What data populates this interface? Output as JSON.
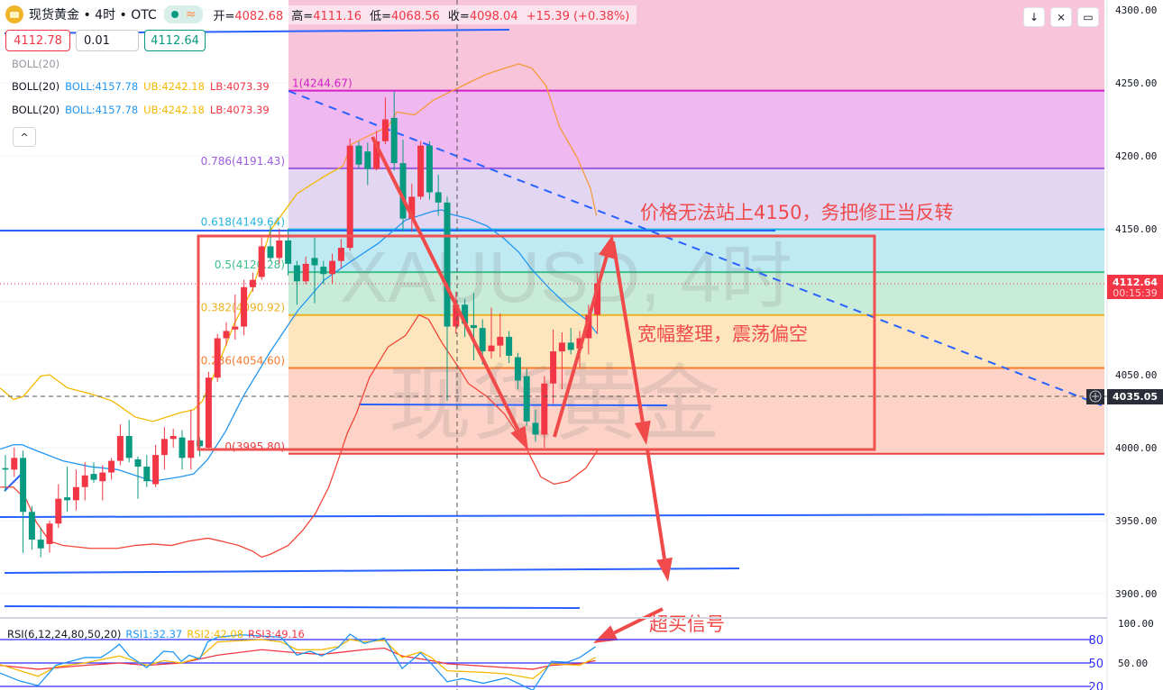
{
  "header": {
    "symbol_title": "现货黄金 • 4时 • OTC",
    "status_symbol": "≈",
    "open_label": "开=",
    "open": "4082.68",
    "high_label": "高=",
    "high": "4111.16",
    "low_label": "低=",
    "low": "4068.56",
    "close_label": "收=",
    "close": "4098.04",
    "change": "+15.39 (+0.38%)"
  },
  "trade": {
    "sell_price": "4112.78",
    "quantity": "0.01",
    "buy_price": "4112.64"
  },
  "indicators": {
    "boll_hidden": "BOLL(20)",
    "boll_rows": [
      {
        "name": "BOLL(20)",
        "mid": "BOLL:4157.78",
        "ub": "UB:4242.18",
        "lb": "LB:4073.39"
      },
      {
        "name": "BOLL(20)",
        "mid": "BOLL:4157.78",
        "ub": "UB:4242.18",
        "lb": "LB:4073.39"
      }
    ],
    "collapse_symbol": "^"
  },
  "toolbar": {
    "down_symbol": "↓",
    "collapse_symbol": "⨯",
    "fullscreen_symbol": "▭"
  },
  "price_axis": {
    "ticks": [
      "4300.00",
      "4250.00",
      "4200.00",
      "4150.00",
      "4050.00",
      "4000.00",
      "3950.00",
      "3900.00"
    ],
    "tick_values": [
      4300,
      4250,
      4200,
      4150,
      4050,
      4000,
      3950,
      3900
    ],
    "current_price": "4112.64",
    "countdown": "00:15:39",
    "crosshair_price": "4035.05"
  },
  "watermark": {
    "line1": "XAUUSD, 4时",
    "line2": "现货黄金"
  },
  "annotations": {
    "note1": "价格无法站上4150，务把修正当反转",
    "note2": "宽幅整理，震荡偏空",
    "note3": "超买信号"
  },
  "colors": {
    "up": "#f23645",
    "down": "#089981",
    "annotation": "#f04a4a",
    "drawing": "#2962ff"
  },
  "fib": [
    {
      "ratio": "1",
      "label": "1(4244.67)",
      "price": 4244.67,
      "line": "#d21fc8",
      "fill": "#f0b8f0"
    },
    {
      "ratio": "0.786",
      "label": "0.786(4191.43)",
      "price": 4191.43,
      "line": "#9c5ce0",
      "fill": "#e2d6f3"
    },
    {
      "ratio": "0.618",
      "label": "0.618(4149.64)",
      "price": 4149.64,
      "line": "#22b5dd",
      "fill": "#bfe9f3"
    },
    {
      "ratio": "0.5",
      "label": "0.5(4120.28)",
      "price": 4120.28,
      "line": "#3dbf8a",
      "fill": "#c9ecd9"
    },
    {
      "ratio": "0.382",
      "label": "0.382(4090.92)",
      "price": 4090.92,
      "line": "#e9b21f",
      "fill": "#fde6bd"
    },
    {
      "ratio": "0.236",
      "label": "0.236(4054.60)",
      "price": 4054.6,
      "line": "#f57c2e",
      "fill": "#fdd3c7"
    },
    {
      "ratio": "0",
      "label": "0(3995.80)",
      "price": 3995.8,
      "line": "#e84040",
      "fill": ""
    }
  ],
  "fib_top_fill": "#f7c4d9",
  "chart_data": {
    "type": "candlestick",
    "symbol": "XAUUSD",
    "timeframe": "4时",
    "ylim": [
      3880,
      4300
    ],
    "candles_ohlc": [
      [
        3986,
        3995,
        3970,
        3985
      ],
      [
        3985,
        4000,
        3980,
        3993
      ],
      [
        3993,
        3998,
        3928,
        3956
      ],
      [
        3956,
        3960,
        3930,
        3937
      ],
      [
        3937,
        3945,
        3925,
        3931
      ],
      [
        3934,
        3950,
        3928,
        3948
      ],
      [
        3948,
        3975,
        3945,
        3965
      ],
      [
        3966,
        3987,
        3956,
        3964
      ],
      [
        3964,
        3985,
        3957,
        3973
      ],
      [
        3973,
        3990,
        3964,
        3981
      ],
      [
        3982,
        3990,
        3976,
        3978
      ],
      [
        3977,
        3988,
        3964,
        3983
      ],
      [
        3983,
        3993,
        3978,
        3991
      ],
      [
        3991,
        4016,
        3988,
        4008
      ],
      [
        4008,
        4019,
        3990,
        3993
      ],
      [
        3992,
        3994,
        3965,
        3987
      ],
      [
        3987,
        3995,
        3973,
        3977
      ],
      [
        3975,
        4002,
        3973,
        3995
      ],
      [
        3995,
        4014,
        3985,
        4006
      ],
      [
        4006,
        4013,
        4000,
        4008
      ],
      [
        4007,
        4012,
        3985,
        3993
      ],
      [
        3993,
        4026,
        3985,
        4005
      ],
      [
        4005,
        4007,
        3994,
        4001
      ],
      [
        4000,
        4052,
        3998,
        4048
      ],
      [
        4048,
        4078,
        4045,
        4075
      ],
      [
        4075,
        4086,
        4070,
        4080
      ],
      [
        4081,
        4105,
        4074,
        4083
      ],
      [
        4083,
        4115,
        4077,
        4110
      ],
      [
        4110,
        4120,
        4107,
        4115
      ],
      [
        4117,
        4144,
        4115,
        4138
      ],
      [
        4138,
        4152,
        4128,
        4130
      ],
      [
        4130,
        4150,
        4126,
        4142
      ],
      [
        4142,
        4150,
        4118,
        4126
      ],
      [
        4125,
        4128,
        4098,
        4114
      ],
      [
        4114,
        4131,
        4112,
        4126
      ],
      [
        4130,
        4144,
        4099,
        4125
      ],
      [
        4124,
        4128,
        4112,
        4119
      ],
      [
        4119,
        4133,
        4112,
        4128
      ],
      [
        4128,
        4143,
        4123,
        4137
      ],
      [
        4137,
        4212,
        4135,
        4207
      ],
      [
        4207,
        4210,
        4191,
        4194
      ],
      [
        4203,
        4209,
        4180,
        4191
      ],
      [
        4191,
        4217,
        4190,
        4210
      ],
      [
        4210,
        4240,
        4208,
        4225
      ],
      [
        4226,
        4244,
        4190,
        4195
      ],
      [
        4195,
        4211,
        4148,
        4157
      ],
      [
        4157,
        4181,
        4148,
        4172
      ],
      [
        4172,
        4210,
        4170,
        4207
      ],
      [
        4207,
        4210,
        4170,
        4175
      ],
      [
        4175,
        4187,
        4159,
        4168
      ],
      [
        4168,
        4172,
        4032,
        4083
      ],
      [
        4083,
        4107,
        4078,
        4098
      ],
      [
        4098,
        4102,
        4076,
        4085
      ],
      [
        4084,
        4106,
        4060,
        4082
      ],
      [
        4082,
        4088,
        4057,
        4066
      ],
      [
        4066,
        4096,
        4061,
        4070
      ],
      [
        4070,
        4092,
        4062,
        4076
      ],
      [
        4076,
        4080,
        4058,
        4063
      ],
      [
        4062,
        4065,
        4040,
        4046
      ],
      [
        4049,
        4054,
        4015,
        4018
      ],
      [
        4017,
        4026,
        4004,
        4009
      ],
      [
        4009,
        4049,
        4000,
        4044
      ],
      [
        4044,
        4081,
        4030,
        4066
      ],
      [
        4066,
        4079,
        4040,
        4072
      ],
      [
        4072,
        4082,
        4064,
        4067
      ],
      [
        4068,
        4080,
        4055,
        4075
      ],
      [
        4075,
        4098,
        4064,
        4091
      ],
      [
        4091,
        4120,
        4078,
        4112.64
      ]
    ],
    "boll_upper_a": [
      [
        -0.6,
        4041
      ],
      [
        0.9,
        4033
      ],
      [
        2,
        4035
      ],
      [
        4,
        4049
      ],
      [
        5,
        4050
      ],
      [
        7,
        4041
      ],
      [
        9.6,
        4037
      ],
      [
        12.1,
        4032
      ],
      [
        14.7,
        4021
      ],
      [
        16.7,
        4018
      ],
      [
        19.8,
        4024
      ],
      [
        21.3,
        4026
      ],
      [
        22.3,
        4032
      ],
      [
        23.9,
        4054
      ],
      [
        25.9,
        4085
      ],
      [
        28,
        4109
      ],
      [
        30,
        4149
      ],
      [
        33,
        4174
      ],
      [
        36.1,
        4186
      ],
      [
        38.2,
        4193
      ]
    ],
    "boll_upper_b": [
      [
        38.2,
        4193
      ],
      [
        39.2,
        4208
      ],
      [
        41.2,
        4214
      ],
      [
        43.3,
        4220
      ],
      [
        44.3,
        4230
      ],
      [
        46.3,
        4228
      ],
      [
        48.4,
        4238
      ],
      [
        50.4,
        4244
      ],
      [
        52.4,
        4250
      ],
      [
        54.5,
        4256
      ],
      [
        56.5,
        4260
      ],
      [
        58.1,
        4263
      ],
      [
        59.6,
        4260
      ],
      [
        61.2,
        4248
      ],
      [
        62.7,
        4220
      ],
      [
        64.7,
        4199
      ],
      [
        66.2,
        4178
      ],
      [
        66.9,
        4159
      ]
    ],
    "boll_mid": [
      [
        -0.6,
        3999
      ],
      [
        0.9,
        4002
      ],
      [
        1.9,
        4002
      ],
      [
        3.5,
        3998
      ],
      [
        6.5,
        3991
      ],
      [
        9.6,
        3987
      ],
      [
        12.7,
        3985
      ],
      [
        14.7,
        3981
      ],
      [
        16.7,
        3977
      ],
      [
        19.8,
        3980
      ],
      [
        21.3,
        3982
      ],
      [
        22.9,
        3992
      ],
      [
        24.9,
        4011
      ],
      [
        26.9,
        4035
      ],
      [
        30,
        4066
      ],
      [
        33.1,
        4094
      ],
      [
        36.1,
        4115
      ],
      [
        39.2,
        4128
      ],
      [
        42.2,
        4140
      ],
      [
        45.3,
        4156
      ],
      [
        48.4,
        4162
      ],
      [
        49.4,
        4163
      ],
      [
        50.4,
        4160
      ],
      [
        52.4,
        4157
      ],
      [
        54.5,
        4152
      ],
      [
        56.5,
        4143
      ],
      [
        58.1,
        4134
      ],
      [
        59.6,
        4122
      ],
      [
        61.6,
        4109
      ],
      [
        63.7,
        4097
      ],
      [
        65.7,
        4088
      ],
      [
        67,
        4078
      ]
    ],
    "boll_lower": [
      [
        -0.6,
        3973
      ],
      [
        0.9,
        3973
      ],
      [
        2.4,
        3964
      ],
      [
        3.5,
        3949
      ],
      [
        5,
        3936
      ],
      [
        6.5,
        3933
      ],
      [
        9.6,
        3931
      ],
      [
        12.7,
        3931
      ],
      [
        14.7,
        3933
      ],
      [
        16.7,
        3934
      ],
      [
        18.8,
        3933
      ],
      [
        20.8,
        3936
      ],
      [
        22.9,
        3938
      ],
      [
        24.4,
        3936
      ],
      [
        26.4,
        3933
      ],
      [
        28,
        3929
      ],
      [
        29,
        3925
      ],
      [
        30,
        3927
      ],
      [
        32,
        3933
      ],
      [
        33.6,
        3943
      ],
      [
        35.1,
        3955
      ],
      [
        36.6,
        3973
      ],
      [
        37.7,
        3992
      ],
      [
        38.7,
        4010
      ],
      [
        39.7,
        4023
      ],
      [
        41.2,
        4048
      ],
      [
        43.3,
        4069
      ],
      [
        45.3,
        4077
      ],
      [
        46.8,
        4091
      ],
      [
        47.9,
        4088
      ],
      [
        49.4,
        4072
      ],
      [
        50.4,
        4063
      ],
      [
        51.4,
        4054
      ],
      [
        52.4,
        4044
      ],
      [
        54.5,
        4035
      ],
      [
        56.5,
        4023
      ],
      [
        58.6,
        4004
      ],
      [
        59.6,
        3992
      ],
      [
        60.6,
        3980
      ],
      [
        62.1,
        3975
      ],
      [
        63.7,
        3977
      ],
      [
        65.7,
        3986
      ],
      [
        67,
        3998
      ]
    ],
    "rsi": {
      "label": "RSI(6,12,24,80,50,20)",
      "rsi1_label": "RSI1:32.37",
      "rsi2_label": "RSI2:42.08",
      "rsi3_label": "RSI3:49.16",
      "levels": [
        80,
        50,
        20
      ],
      "level_labels": [
        "80",
        "50",
        "20"
      ],
      "axis_ticks": [
        "100.00",
        "50.00"
      ],
      "rsi1": [
        [
          -0.6,
          37
        ],
        [
          1.6,
          27
        ],
        [
          3.7,
          21
        ],
        [
          5.7,
          47
        ],
        [
          9,
          57
        ],
        [
          10.8,
          57
        ],
        [
          11.9,
          65
        ],
        [
          12.9,
          74
        ],
        [
          14,
          59
        ],
        [
          16,
          44
        ],
        [
          17.9,
          65
        ],
        [
          19,
          64
        ],
        [
          19.9,
          52
        ],
        [
          20.8,
          60
        ],
        [
          22,
          55
        ],
        [
          22.9,
          77
        ],
        [
          24,
          83
        ],
        [
          26.7,
          86
        ],
        [
          31.2,
          83
        ],
        [
          33,
          60
        ],
        [
          34.5,
          65
        ],
        [
          35.8,
          59
        ],
        [
          37.7,
          70
        ],
        [
          39,
          87
        ],
        [
          40.6,
          75
        ],
        [
          42.9,
          82
        ],
        [
          44.9,
          43
        ],
        [
          47,
          63
        ],
        [
          48.2,
          49
        ],
        [
          50,
          26
        ],
        [
          51.7,
          30
        ],
        [
          54.1,
          24
        ],
        [
          56.7,
          31
        ],
        [
          59.7,
          15
        ],
        [
          61.8,
          52
        ],
        [
          63.6,
          51
        ],
        [
          65,
          57
        ],
        [
          66.8,
          71
        ]
      ],
      "rsi2": [
        [
          -0.6,
          48
        ],
        [
          3.7,
          33
        ],
        [
          5.7,
          45
        ],
        [
          9,
          50
        ],
        [
          12.9,
          59
        ],
        [
          16,
          47
        ],
        [
          17.9,
          53
        ],
        [
          19.9,
          50
        ],
        [
          22,
          57
        ],
        [
          24,
          77
        ],
        [
          29,
          80
        ],
        [
          31.2,
          77
        ],
        [
          33,
          67
        ],
        [
          35.8,
          67
        ],
        [
          37.7,
          71
        ],
        [
          39,
          80
        ],
        [
          40.6,
          77
        ],
        [
          42.9,
          79
        ],
        [
          44.9,
          57
        ],
        [
          47,
          64
        ],
        [
          48.2,
          57
        ],
        [
          50,
          40
        ],
        [
          54.1,
          38
        ],
        [
          56.7,
          36
        ],
        [
          59.7,
          30
        ],
        [
          61.8,
          49
        ],
        [
          65,
          47
        ],
        [
          66.8,
          57
        ]
      ],
      "rsi3": [
        [
          -0.6,
          47
        ],
        [
          3.7,
          42
        ],
        [
          9,
          47
        ],
        [
          12.9,
          50
        ],
        [
          16,
          47
        ],
        [
          19.9,
          50
        ],
        [
          24,
          60
        ],
        [
          29,
          67
        ],
        [
          33,
          63
        ],
        [
          35.8,
          61
        ],
        [
          40.6,
          67
        ],
        [
          42.9,
          69
        ],
        [
          44.9,
          59
        ],
        [
          48.2,
          53
        ],
        [
          50,
          49
        ],
        [
          54.1,
          46
        ],
        [
          59.7,
          42
        ],
        [
          61.8,
          47
        ],
        [
          65,
          49
        ],
        [
          66.8,
          53
        ]
      ]
    }
  }
}
